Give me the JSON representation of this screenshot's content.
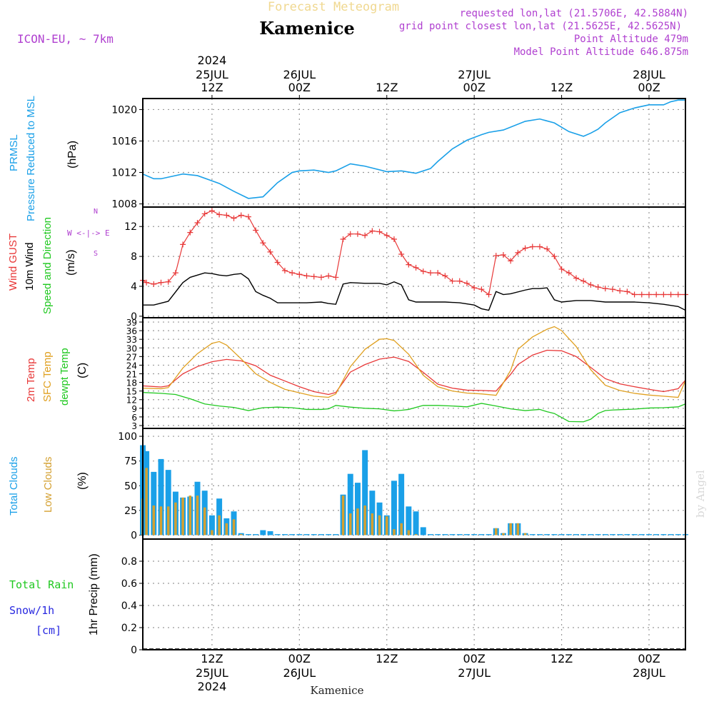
{
  "header": {
    "forecast_title": "Forecast Meteogram",
    "model": "ICON-EU, ~ 7km",
    "location": "Kamenice",
    "requested": "requested lon,lat (21.5706E, 42.5884N)",
    "gridpoint": "grid point closest lon,lat (21.5625E, 42.5625N)",
    "point_alt": "Point Altitude 479m",
    "model_alt": "Model Point Altitude 646.875m",
    "watermark": "by Angel",
    "footer_location": "Kamenice"
  },
  "colors": {
    "pressure": "#1aa0e8",
    "gust": "#e83838",
    "wind": "#000000",
    "temp2m": "#e83838",
    "sfc": "#e0a020",
    "dewpt": "#20c820",
    "total_clouds": "#1aa0e8",
    "low_clouds": "#d4a030",
    "rain": "#20c820",
    "snow": "#2828e0",
    "meta": "#b040d0"
  },
  "time_axis": {
    "top_labels": [
      {
        "l1": "2024",
        "l2": "25JUL",
        "l3": "12Z"
      },
      {
        "l1": "",
        "l2": "26JUL",
        "l3": "00Z"
      },
      {
        "l1": "",
        "l2": "",
        "l3": "12Z"
      },
      {
        "l1": "",
        "l2": "27JUL",
        "l3": "00Z"
      },
      {
        "l1": "",
        "l2": "",
        "l3": "12Z"
      },
      {
        "l1": "",
        "l2": "28JUL",
        "l3": "00Z"
      }
    ],
    "bottom_labels": [
      {
        "l1": "12Z",
        "l2": "25JUL",
        "l3": "2024"
      },
      {
        "l1": "00Z",
        "l2": "26JUL",
        "l3": ""
      },
      {
        "l1": "12Z",
        "l2": "",
        "l3": ""
      },
      {
        "l1": "00Z",
        "l2": "27JUL",
        "l3": ""
      },
      {
        "l1": "12Z",
        "l2": "",
        "l3": ""
      },
      {
        "l1": "00Z",
        "l2": "28JUL",
        "l3": ""
      }
    ],
    "tick_hours": [
      12,
      24,
      36,
      48,
      60,
      72
    ],
    "range_hours": [
      2.5,
      77
    ]
  },
  "chart_data": [
    {
      "type": "line",
      "panel": "pressure",
      "labels": {
        "a": "PRMSL",
        "b": "Pressure Reduced to MSL",
        "unit": "(hPa)"
      },
      "ylim": [
        1007.6,
        1021.4
      ],
      "yticks": [
        "1008",
        "1012",
        "1016",
        "1020"
      ],
      "ytick_values": [
        1008,
        1012,
        1016,
        1020
      ],
      "grid": true,
      "series": [
        {
          "x": [
            2.5,
            4,
            5,
            8,
            10,
            13,
            15,
            17,
            19,
            21,
            23,
            24,
            26,
            28,
            29,
            31,
            33,
            36,
            38,
            40,
            42,
            43,
            45,
            47,
            49,
            50,
            52,
            55,
            57,
            59,
            61,
            63,
            64,
            65,
            66,
            68,
            70,
            72,
            73,
            74,
            75,
            76,
            77
          ],
          "values": [
            1011.8,
            1011.2,
            1011.2,
            1011.8,
            1011.6,
            1010.6,
            1009.6,
            1008.7,
            1008.9,
            1010.7,
            1012.0,
            1012.2,
            1012.3,
            1012.0,
            1012.2,
            1013.1,
            1012.8,
            1012.1,
            1012.2,
            1011.9,
            1012.5,
            1013.4,
            1015.0,
            1016.1,
            1016.8,
            1017.1,
            1017.4,
            1018.5,
            1018.8,
            1018.3,
            1017.2,
            1016.6,
            1017.0,
            1017.5,
            1018.3,
            1019.6,
            1020.2,
            1020.6,
            1020.6,
            1020.6,
            1021.0,
            1021.2,
            1021.2
          ]
        }
      ]
    },
    {
      "type": "line",
      "panel": "wind",
      "labels": {
        "a": "Wind GUST",
        "b": "10m Wind",
        "c": "Speed and Direction",
        "unit": "(m/s)",
        "compass": "W <-|-> E",
        "compass_n": "N",
        "compass_s": "S"
      },
      "ylim": [
        -0.2,
        14.6
      ],
      "yticks": [
        "0",
        "4",
        "8",
        "12"
      ],
      "ytick_values": [
        0,
        4,
        8,
        12
      ],
      "grid": true,
      "series": [
        {
          "name": "Wind GUST",
          "x": [
            2.5,
            3,
            4,
            5,
            6,
            7,
            8,
            9,
            10,
            11,
            12,
            13,
            14,
            15,
            16,
            17,
            18,
            19,
            20,
            21,
            22,
            23,
            24,
            25,
            26,
            27,
            28,
            29,
            30,
            31,
            32,
            33,
            34,
            35,
            36,
            37,
            38,
            39,
            40,
            41,
            42,
            43,
            44,
            45,
            46,
            47,
            48,
            49,
            50,
            51,
            52,
            53,
            54,
            55,
            56,
            57,
            58,
            59,
            60,
            61,
            62,
            63,
            64,
            65,
            66,
            67,
            68,
            69,
            70,
            71,
            72,
            73,
            74,
            75,
            76,
            77
          ],
          "values": [
            4.8,
            4.5,
            4.3,
            4.5,
            4.6,
            5.8,
            9.6,
            11.2,
            12.5,
            13.7,
            14.1,
            13.6,
            13.5,
            13.1,
            13.5,
            13.3,
            11.5,
            9.8,
            8.6,
            7.2,
            6.1,
            5.8,
            5.6,
            5.4,
            5.3,
            5.2,
            5.4,
            5.2,
            10.3,
            11.0,
            11.0,
            10.8,
            11.4,
            11.3,
            10.8,
            10.3,
            8.3,
            6.9,
            6.5,
            6.0,
            5.8,
            5.8,
            5.4,
            4.7,
            4.7,
            4.4,
            3.8,
            3.6,
            2.9,
            8.1,
            8.2,
            7.4,
            8.5,
            9.1,
            9.3,
            9.3,
            9.0,
            8.0,
            6.3,
            5.8,
            5.1,
            4.7,
            4.2,
            3.9,
            3.7,
            3.6,
            3.4,
            3.3,
            2.9,
            2.9,
            2.9,
            2.9,
            2.9,
            2.9,
            2.9,
            2.9
          ]
        },
        {
          "name": "10m Wind",
          "x": [
            2.5,
            4,
            6,
            8,
            9,
            10,
            11,
            12,
            13,
            14,
            15,
            16,
            17,
            18,
            19,
            20,
            21,
            23,
            25,
            27,
            28,
            29,
            30,
            31,
            33,
            35,
            36,
            37,
            38,
            39,
            40,
            42,
            44,
            46,
            48,
            49,
            50,
            51,
            52,
            53,
            55,
            56,
            57,
            58,
            59,
            60,
            62,
            64,
            66,
            68,
            70,
            72,
            74,
            76,
            77
          ],
          "values": [
            1.5,
            1.5,
            2.0,
            4.5,
            5.2,
            5.5,
            5.8,
            5.7,
            5.5,
            5.4,
            5.6,
            5.7,
            5.0,
            3.3,
            2.8,
            2.4,
            1.8,
            1.8,
            1.8,
            1.9,
            1.7,
            1.6,
            4.3,
            4.5,
            4.4,
            4.4,
            4.2,
            4.6,
            4.2,
            2.2,
            1.9,
            1.9,
            1.9,
            1.8,
            1.5,
            1.0,
            0.8,
            3.3,
            2.9,
            3.0,
            3.5,
            3.7,
            3.7,
            3.8,
            2.2,
            1.9,
            2.1,
            2.1,
            1.9,
            1.9,
            1.9,
            1.8,
            1.6,
            1.3,
            0.8
          ]
        }
      ]
    },
    {
      "type": "line",
      "panel": "temperature",
      "labels": {
        "a": "2m Temp",
        "b": "SFC Temp",
        "c": "dewpt Temp",
        "unit": "(C)"
      },
      "ylim": [
        2,
        40.5
      ],
      "yticks": [
        "3",
        "6",
        "9",
        "12",
        "15",
        "18",
        "21",
        "24",
        "27",
        "30",
        "33",
        "36",
        "39"
      ],
      "ytick_values": [
        3,
        6,
        9,
        12,
        15,
        18,
        21,
        24,
        27,
        30,
        33,
        36,
        39
      ],
      "grid": true,
      "series": [
        {
          "name": "2m Temp",
          "x": [
            2.5,
            5,
            6,
            8,
            10,
            12,
            14,
            16,
            18,
            20,
            22,
            24,
            26,
            28,
            29,
            31,
            33,
            35,
            37,
            39,
            41,
            43,
            45,
            47,
            49,
            51,
            53,
            54,
            56,
            58,
            60,
            62,
            64,
            66,
            68,
            70,
            72,
            74,
            76,
            77
          ],
          "values": [
            16.8,
            16.4,
            16.8,
            21.0,
            23.5,
            25.2,
            26.0,
            25.5,
            23.8,
            20.5,
            18.5,
            16.5,
            14.8,
            13.8,
            14.5,
            21.6,
            24.2,
            26.1,
            26.8,
            25.3,
            21.5,
            17.4,
            16.0,
            15.3,
            15.2,
            15.0,
            20.8,
            24.2,
            27.5,
            29.2,
            29.0,
            27.0,
            23.2,
            19.3,
            17.5,
            16.5,
            15.6,
            14.8,
            15.8,
            18.8
          ]
        },
        {
          "name": "SFC Temp",
          "x": [
            2.5,
            5,
            6,
            8,
            10,
            12,
            13,
            14,
            16,
            18,
            20,
            22,
            24,
            26,
            28,
            29,
            31,
            33,
            35,
            36,
            37,
            39,
            41,
            43,
            45,
            47,
            49,
            51,
            53,
            54,
            56,
            58,
            59,
            60,
            62,
            64,
            66,
            68,
            70,
            72,
            74,
            76,
            77
          ],
          "values": [
            16.0,
            15.8,
            16.2,
            23.0,
            28.0,
            31.6,
            32.2,
            31.0,
            26.2,
            21.0,
            18.0,
            15.6,
            14.4,
            13.2,
            12.8,
            14.0,
            23.5,
            29.5,
            33.0,
            33.2,
            32.6,
            27.8,
            20.5,
            16.5,
            15.0,
            14.3,
            14.0,
            13.5,
            22.2,
            29.5,
            33.8,
            36.5,
            37.4,
            36.0,
            30.5,
            22.4,
            17.0,
            15.2,
            14.2,
            13.6,
            13.2,
            12.8,
            18.6
          ]
        },
        {
          "name": "dewpt Temp",
          "x": [
            2.5,
            5,
            7,
            9,
            11,
            13,
            15,
            17,
            19,
            21,
            23,
            25,
            27,
            28,
            29,
            31,
            33,
            35,
            37,
            38,
            39,
            41,
            43,
            45,
            47,
            49,
            51,
            53,
            55,
            57,
            58,
            59,
            61,
            63,
            64,
            65,
            66,
            67,
            68,
            70,
            72,
            74,
            76,
            77
          ],
          "values": [
            14.5,
            14.2,
            13.8,
            12.3,
            10.5,
            9.8,
            9.3,
            8.2,
            9.2,
            9.4,
            9.2,
            8.6,
            8.6,
            8.8,
            10.0,
            9.4,
            9.0,
            8.8,
            8.1,
            8.3,
            8.6,
            10.0,
            10.0,
            9.8,
            9.5,
            10.7,
            9.8,
            8.8,
            8.2,
            8.6,
            7.8,
            7.2,
            4.4,
            4.3,
            5.2,
            7.2,
            8.2,
            8.4,
            8.5,
            8.7,
            9.1,
            9.2,
            9.5,
            10.5
          ]
        }
      ]
    },
    {
      "type": "bar",
      "panel": "clouds",
      "labels": {
        "a": "Total Clouds",
        "b": "Low Clouds",
        "unit": "(%)"
      },
      "ylim": [
        -4,
        108
      ],
      "yticks": [
        "0",
        "25",
        "50",
        "75",
        "100"
      ],
      "ytick_values": [
        0,
        25,
        50,
        75,
        100
      ],
      "grid": true,
      "x": [
        2.5,
        3,
        4,
        5,
        6,
        7,
        8,
        9,
        10,
        11,
        12,
        13,
        14,
        15,
        16,
        17,
        18,
        19,
        20,
        21,
        22,
        23,
        24,
        25,
        26,
        27,
        28,
        29,
        30,
        31,
        32,
        33,
        34,
        35,
        36,
        37,
        38,
        39,
        40,
        41,
        42,
        43,
        44,
        45,
        46,
        47,
        48,
        49,
        50,
        51,
        52,
        53,
        54,
        55,
        56,
        57,
        58,
        59,
        60,
        61,
        62,
        63,
        64,
        65,
        66,
        67,
        68,
        69,
        70,
        71,
        72,
        73,
        74,
        75,
        76,
        77
      ],
      "series": [
        {
          "name": "Total Clouds",
          "values": [
            91,
            85,
            64,
            77,
            66,
            44,
            38,
            39,
            54,
            45,
            20,
            37,
            17,
            24,
            2,
            1,
            1,
            5,
            4,
            1,
            1,
            1,
            1,
            1,
            1,
            1,
            1,
            1,
            41,
            62,
            53,
            86,
            45,
            33,
            20,
            55,
            62,
            29,
            24,
            8,
            1,
            1,
            1,
            1,
            1,
            1,
            1,
            1,
            1,
            7,
            2,
            12,
            12,
            2,
            1,
            1,
            1,
            1,
            1,
            1,
            1,
            1,
            1,
            1,
            1,
            1,
            1,
            1,
            1,
            1,
            1,
            1,
            1,
            1,
            1,
            1
          ]
        },
        {
          "name": "Low Clouds",
          "values": [
            37,
            68,
            30,
            29,
            29,
            33,
            38,
            40,
            40,
            28,
            5,
            20,
            12,
            16,
            1,
            0,
            0,
            0,
            0,
            0,
            0,
            0,
            0,
            0,
            0,
            0,
            0,
            0,
            40,
            22,
            27,
            30,
            22,
            20,
            19,
            6,
            12,
            5,
            1,
            0,
            0,
            0,
            0,
            0,
            0,
            0,
            0,
            0,
            0,
            7,
            2,
            12,
            12,
            2,
            0,
            0,
            0,
            0,
            0,
            0,
            0,
            0,
            0,
            0,
            0,
            0,
            0,
            0,
            0,
            0,
            0,
            0,
            0,
            0,
            0,
            0
          ]
        }
      ]
    },
    {
      "type": "bar",
      "panel": "precip",
      "labels": {
        "rain": "Total Rain",
        "snow": "Snow/1h",
        "snow_unit": "[cm]",
        "unit": "1hr Precip (mm)"
      },
      "ylim": [
        0,
        1.0
      ],
      "yticks": [
        "0",
        "0.2",
        "0.4",
        "0.6",
        "0.8"
      ],
      "ytick_values": [
        0,
        0.2,
        0.4,
        0.6,
        0.8
      ],
      "grid": true,
      "series": [
        {
          "name": "Total Rain",
          "values": [
            0
          ]
        },
        {
          "name": "Snow/1h",
          "values": [
            0
          ]
        }
      ]
    }
  ]
}
